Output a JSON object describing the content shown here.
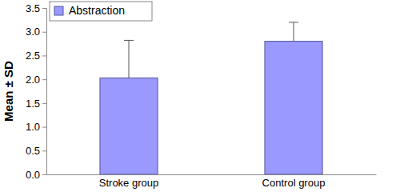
{
  "chart_data": {
    "type": "bar",
    "y_label": "Mean ± SD",
    "categories": [
      "Stroke group",
      "Control group"
    ],
    "series": [
      {
        "name": "Abstraction",
        "color": "#9999ff",
        "values": [
          2.03,
          2.8
        ],
        "error": [
          0.79,
          0.4
        ]
      }
    ],
    "ylim": [
      0,
      3.5
    ],
    "yticks": [
      {
        "value": 0,
        "label": "0.0"
      },
      0.5,
      {
        "value": 1,
        "label": "1.0"
      },
      1.5,
      {
        "value": 2,
        "label": "2.0"
      },
      2.5,
      {
        "value": 3,
        "label": "3.0"
      },
      3.5
    ],
    "legend": "upper left",
    "grid": false
  }
}
